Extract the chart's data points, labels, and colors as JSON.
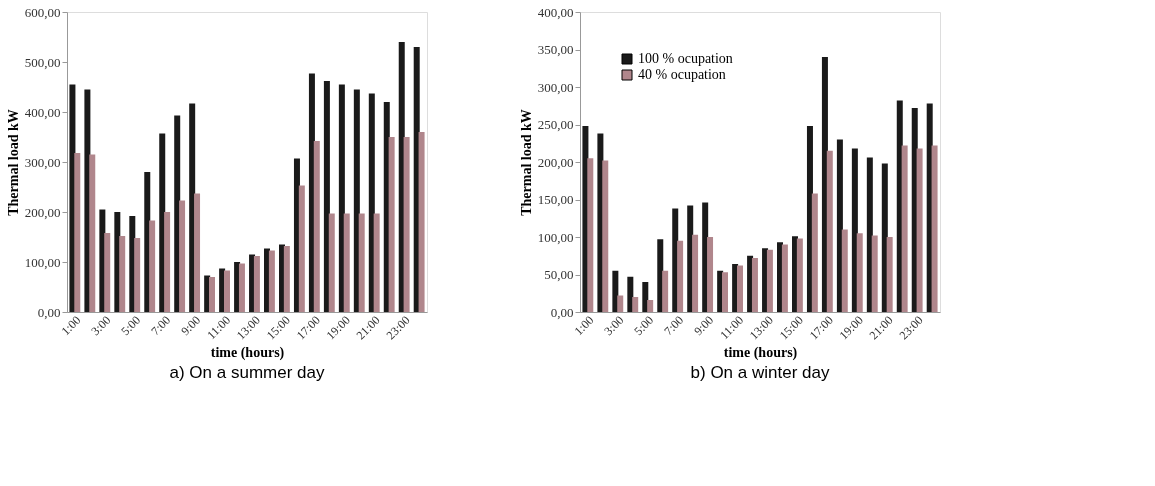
{
  "chart_data": [
    {
      "type": "bar",
      "title": "a) On a summer day",
      "xlabel": "time (hours)",
      "ylabel": "Thermal load kW",
      "categories": [
        "1:00",
        null,
        "3:00",
        null,
        "5:00",
        null,
        "7:00",
        null,
        "9:00",
        null,
        "11:00",
        null,
        "13:00",
        null,
        "15:00",
        null,
        "17:00",
        null,
        "19:00",
        null,
        "21:00",
        null,
        "23:00",
        null
      ],
      "series": [
        {
          "color": "#1a1a1a",
          "values": [
            455,
            445,
            205,
            200,
            192,
            280,
            357,
            393,
            417,
            73,
            87,
            100,
            115,
            127,
            135,
            307,
            477,
            462,
            455,
            445,
            437,
            420,
            540,
            530
          ]
        },
        {
          "color": "#b0868c",
          "values": [
            318,
            315,
            158,
            152,
            148,
            183,
            200,
            223,
            237,
            70,
            83,
            97,
            112,
            123,
            132,
            253,
            342,
            197,
            197,
            197,
            197,
            350,
            350,
            360
          ]
        }
      ],
      "ylim": [
        0,
        600
      ],
      "yticks": [
        {
          "value": 0,
          "label": "0,00"
        },
        {
          "value": 100,
          "label": "100,00"
        },
        {
          "value": 200,
          "label": "200,00"
        },
        {
          "value": 300,
          "label": "300,00"
        },
        {
          "value": 400,
          "label": "400,00"
        },
        {
          "value": 500,
          "label": "500,00"
        },
        {
          "value": 600,
          "label": "600,00"
        }
      ],
      "grid": false,
      "legend": false
    },
    {
      "type": "bar",
      "title": "b) On a winter day",
      "xlabel": "time (hours)",
      "ylabel": "Thermal load kW",
      "categories": [
        "1:00",
        null,
        "3:00",
        null,
        "5:00",
        null,
        "7:00",
        null,
        "9:00",
        null,
        "11:00",
        null,
        "13:00",
        null,
        "15:00",
        null,
        "17:00",
        null,
        "19:00",
        null,
        "21:00",
        null,
        "23:00",
        null
      ],
      "series": [
        {
          "name": "100 % ocupation",
          "color": "#1a1a1a",
          "values": [
            248,
            238,
            55,
            47,
            40,
            97,
            138,
            142,
            146,
            55,
            64,
            75,
            85,
            93,
            101,
            248,
            340,
            230,
            218,
            206,
            198,
            282,
            272,
            278
          ]
        },
        {
          "name": "40 % ocupation",
          "color": "#b0868c",
          "values": [
            205,
            202,
            22,
            20,
            16,
            55,
            95,
            103,
            100,
            53,
            62,
            72,
            83,
            90,
            98,
            158,
            215,
            110,
            105,
            102,
            100,
            222,
            218,
            222
          ]
        }
      ],
      "ylim": [
        0,
        400
      ],
      "yticks": [
        {
          "value": 0,
          "label": "0,00"
        },
        {
          "value": 50,
          "label": "50,00"
        },
        {
          "value": 100,
          "label": "100,00"
        },
        {
          "value": 150,
          "label": "150,00"
        },
        {
          "value": 200,
          "label": "200,00"
        },
        {
          "value": 250,
          "label": "250,00"
        },
        {
          "value": 300,
          "label": "300,00"
        },
        {
          "value": 350,
          "label": "350,00"
        },
        {
          "value": 400,
          "label": "400,00"
        }
      ],
      "grid": false,
      "legend": "top left"
    }
  ]
}
